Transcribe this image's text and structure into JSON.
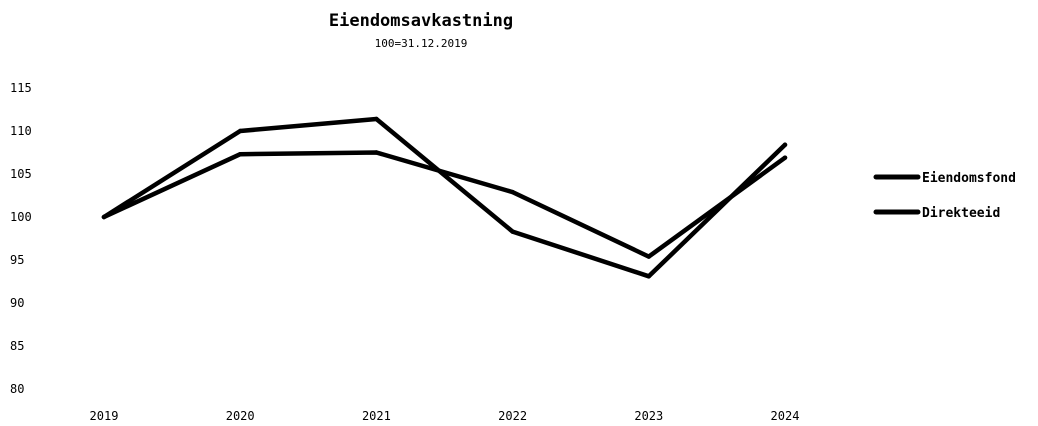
{
  "chart_data": {
    "type": "line",
    "title": "Eiendomsavkastning",
    "subtitle": "100=31.12.2019",
    "xlabel": "",
    "ylabel": "",
    "categories": [
      "2019",
      "2020",
      "2021",
      "2022",
      "2023",
      "2024"
    ],
    "ylim": [
      80,
      115
    ],
    "yticks": [
      80,
      85,
      90,
      95,
      100,
      105,
      110,
      115
    ],
    "grid": false,
    "legend_position": "right",
    "series": [
      {
        "name": "Eiendomsfond",
        "color": "#000000",
        "values": [
          100.0,
          110.0,
          111.4,
          98.3,
          93.1,
          108.4
        ]
      },
      {
        "name": "Direkteeid",
        "color": "#000000",
        "values": [
          100.0,
          107.3,
          107.5,
          102.9,
          95.4,
          106.9
        ]
      }
    ]
  }
}
